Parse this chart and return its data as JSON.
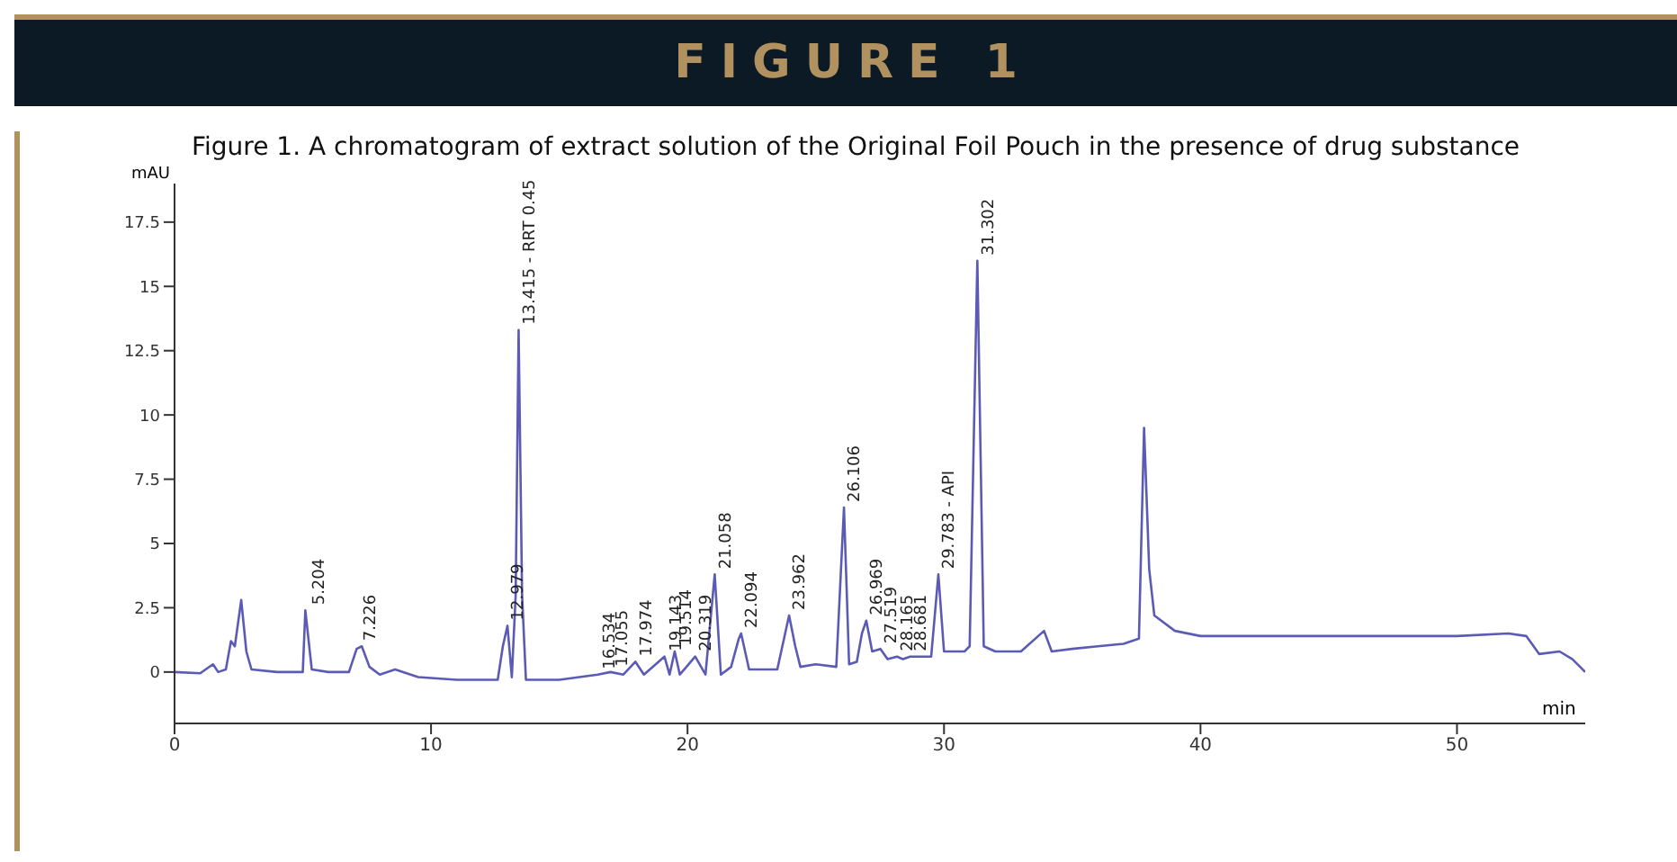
{
  "chart_data": {
    "type": "line",
    "title": "FIGURE 1",
    "subtitle": "Figure 1. A chromatogram of extract solution of the Original Foil Pouch in the presence of drug substance",
    "xlabel": "min",
    "ylabel": "mAU",
    "x": [
      0,
      1.0,
      1.5,
      1.7,
      2.0,
      2.2,
      2.35,
      2.6,
      2.8,
      3.0,
      4,
      5.0,
      5.1,
      5.35,
      6,
      6.8,
      7.1,
      7.3,
      7.6,
      8,
      8.6,
      9.5,
      11,
      12.6,
      12.8,
      12.98,
      13.15,
      13.3,
      13.415,
      13.55,
      13.7,
      15,
      16.5,
      17.0,
      17.5,
      17.97,
      18.3,
      19.1,
      19.3,
      19.5,
      19.7,
      20.3,
      20.7,
      21.06,
      21.3,
      21.7,
      22.0,
      22.09,
      22.4,
      23.5,
      23.96,
      24.2,
      24.4,
      25,
      25.8,
      26.1,
      26.3,
      26.6,
      26.8,
      26.97,
      27.2,
      27.52,
      27.8,
      28.17,
      28.4,
      28.68,
      29,
      29.5,
      29.78,
      30.0,
      30.8,
      31.0,
      31.3,
      31.55,
      32,
      33,
      33.9,
      34.2,
      35,
      36,
      37,
      37.6,
      37.8,
      38.0,
      38.2,
      39,
      40,
      45,
      50,
      52,
      52.7,
      53.2,
      54.0,
      54.5,
      55
    ],
    "series": [
      {
        "color": "#5b5bb5",
        "values": [
          0,
          -0.05,
          0.3,
          0,
          0.1,
          1.2,
          1.0,
          2.8,
          0.8,
          0.1,
          0,
          0,
          2.4,
          0.1,
          0,
          0,
          0.9,
          1.0,
          0.2,
          -0.1,
          0.1,
          -0.2,
          -0.3,
          -0.3,
          1.0,
          1.8,
          -0.2,
          3,
          13.3,
          3,
          -0.3,
          -0.3,
          -0.1,
          0,
          -0.1,
          0.4,
          -0.1,
          0.6,
          -0.1,
          0.8,
          -0.1,
          0.6,
          -0.1,
          3.8,
          -0.1,
          0.2,
          1.3,
          1.5,
          0.1,
          0.1,
          2.2,
          1.0,
          0.2,
          0.3,
          0.2,
          6.4,
          0.3,
          0.4,
          1.5,
          2.0,
          0.8,
          0.9,
          0.5,
          0.6,
          0.5,
          0.6,
          0.6,
          0.6,
          3.8,
          0.8,
          0.8,
          1.0,
          16.0,
          1.0,
          0.8,
          0.8,
          1.6,
          0.8,
          0.9,
          1.0,
          1.1,
          1.3,
          9.5,
          4,
          2.2,
          1.6,
          1.4,
          1.4,
          1.4,
          1.5,
          1.4,
          0.7,
          0.8,
          0.5,
          0.0
        ]
      }
    ],
    "xlim": [
      0,
      55
    ],
    "xticks": [
      0,
      10,
      20,
      30,
      40,
      50
    ],
    "ylim": [
      -2,
      19
    ],
    "yticks": [
      0,
      2.5,
      5,
      7.5,
      10,
      12.5,
      15,
      17.5
    ],
    "grid": false,
    "legend": false,
    "marker": "none",
    "line_style": "solid",
    "annotations": [
      {
        "text": "5.204",
        "x": 5.204,
        "y": 2.4
      },
      {
        "text": "7.226",
        "x": 7.226,
        "y": 1.0
      },
      {
        "text": "12.979",
        "x": 12.979,
        "y": 1.8
      },
      {
        "text": "13.415 - RRT 0.45",
        "x": 13.415,
        "y": 13.3
      },
      {
        "text": "16.534",
        "x": 16.534,
        "y": -0.1
      },
      {
        "text": "17.055",
        "x": 17.055,
        "y": 0
      },
      {
        "text": "17.974",
        "x": 17.974,
        "y": 0.4
      },
      {
        "text": "19.143",
        "x": 19.143,
        "y": 0.6
      },
      {
        "text": "19.514",
        "x": 19.514,
        "y": 0.8
      },
      {
        "text": "20.319",
        "x": 20.319,
        "y": 0.6
      },
      {
        "text": "21.058",
        "x": 21.058,
        "y": 3.8
      },
      {
        "text": "22.094",
        "x": 22.094,
        "y": 1.5
      },
      {
        "text": "23.962",
        "x": 23.962,
        "y": 2.2
      },
      {
        "text": "26.106",
        "x": 26.106,
        "y": 6.4
      },
      {
        "text": "26.969",
        "x": 26.969,
        "y": 2.0
      },
      {
        "text": "27.519",
        "x": 27.519,
        "y": 0.9
      },
      {
        "text": "28.165",
        "x": 28.165,
        "y": 0.6
      },
      {
        "text": "28.681",
        "x": 28.681,
        "y": 0.6
      },
      {
        "text": "29.783 - API",
        "x": 29.783,
        "y": 3.8
      },
      {
        "text": "31.302",
        "x": 31.302,
        "y": 16.0
      }
    ]
  }
}
